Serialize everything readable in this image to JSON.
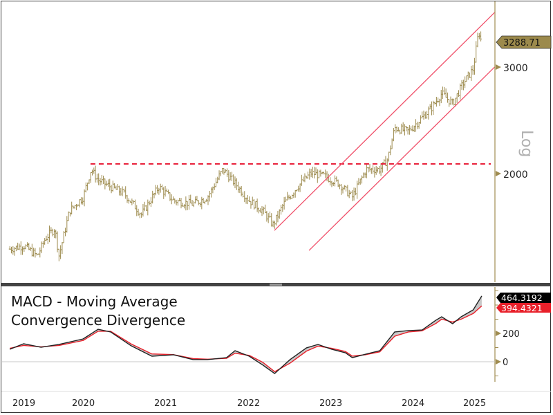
{
  "chart_data": [
    {
      "type": "ohlc",
      "scale": "log",
      "scale_label": "Log",
      "last_value_label": "3288.71",
      "y_ticks": [
        "2000",
        "3000"
      ],
      "x_ticks": [
        "2019",
        "2020",
        "2021",
        "2022",
        "2023",
        "2024",
        "2025"
      ],
      "bar_color": "#9c8a4c",
      "approx_closes": [
        [
          "2019-08-15",
          1501
        ],
        [
          "2019-10-15",
          1521
        ],
        [
          "2019-12-15",
          1462
        ],
        [
          "2020-01-20",
          1562
        ],
        [
          "2020-03-01",
          1624
        ],
        [
          "2020-03-20",
          1462
        ],
        [
          "2020-05-05",
          1735
        ],
        [
          "2020-07-05",
          1829
        ],
        [
          "2020-08-10",
          2032
        ],
        [
          "2020-09-10",
          1953
        ],
        [
          "2020-11-05",
          1902
        ],
        [
          "2021-01-05",
          1853
        ],
        [
          "2021-03-20",
          1712
        ],
        [
          "2021-06-05",
          1902
        ],
        [
          "2021-08-10",
          1805
        ],
        [
          "2021-11-05",
          1781
        ],
        [
          "2022-01-08",
          1829
        ],
        [
          "2022-03-15",
          2032
        ],
        [
          "2022-05-08",
          1928
        ],
        [
          "2022-07-10",
          1805
        ],
        [
          "2022-09-10",
          1735
        ],
        [
          "2022-10-25",
          1646
        ],
        [
          "2022-12-10",
          1781
        ],
        [
          "2023-02-10",
          1902
        ],
        [
          "2023-04-10",
          2005
        ],
        [
          "2023-06-10",
          1979
        ],
        [
          "2023-08-10",
          1928
        ],
        [
          "2023-10-10",
          1829
        ],
        [
          "2023-12-10",
          2032
        ],
        [
          "2024-02-10",
          2032
        ],
        [
          "2024-03-15",
          2114
        ],
        [
          "2024-04-15",
          2380
        ],
        [
          "2024-06-15",
          2349
        ],
        [
          "2024-08-15",
          2475
        ],
        [
          "2024-09-28",
          2575
        ],
        [
          "2024-11-10",
          2714
        ],
        [
          "2024-12-28",
          2609
        ],
        [
          "2025-02-15",
          2823
        ],
        [
          "2025-03-28",
          2976
        ],
        [
          "2025-04-22",
          3438
        ],
        [
          "2025-05-05",
          3289
        ]
      ],
      "annotations": {
        "resistance_level": 2075,
        "resistance_color": "#e8203a",
        "channel_color": "#f0506a",
        "channel_upper": [
          [
            "2022-10-30",
            1611
          ],
          [
            "2025-07-01",
            3692
          ]
        ],
        "channel_lower": [
          [
            "2023-04-01",
            1493
          ],
          [
            "2025-07-01",
            3000
          ]
        ]
      }
    },
    {
      "type": "line",
      "title_line1": "MACD - Moving Average",
      "title_line2": "Convergence Divergence",
      "y_ticks": [
        "0",
        "200"
      ],
      "dates": [
        "2019-08-15",
        "2019-10-15",
        "2020-01-01",
        "2020-03-20",
        "2020-07-05",
        "2020-09-10",
        "2020-11-05",
        "2021-02-05",
        "2021-05-05",
        "2021-08-10",
        "2021-11-05",
        "2022-01-08",
        "2022-04-01",
        "2022-05-08",
        "2022-07-10",
        "2022-09-10",
        "2022-11-01",
        "2023-01-08",
        "2023-03-20",
        "2023-05-10",
        "2023-07-10",
        "2023-09-10",
        "2023-10-10",
        "2023-12-10",
        "2024-02-10",
        "2024-04-15",
        "2024-06-15",
        "2024-08-15",
        "2024-10-15",
        "2024-11-10",
        "2024-12-28",
        "2025-02-05",
        "2025-03-28",
        "2025-05-05"
      ],
      "series": [
        {
          "color": "#222222",
          "last_label": "464.3192",
          "values": [
            88,
            127,
            102,
            122,
            161,
            229,
            210,
            112,
            39,
            49,
            15,
            15,
            29,
            78,
            39,
            -24,
            -83,
            15,
            98,
            122,
            88,
            63,
            29,
            54,
            78,
            210,
            220,
            224,
            293,
            317,
            268,
            317,
            366,
            464
          ]
        },
        {
          "color": "#e8202a",
          "last_label": "394.4321",
          "values": [
            95,
            115,
            105,
            115,
            150,
            215,
            215,
            125,
            55,
            50,
            22,
            18,
            24,
            60,
            45,
            -5,
            -70,
            -10,
            75,
            110,
            95,
            72,
            40,
            50,
            70,
            180,
            210,
            218,
            270,
            300,
            280,
            300,
            340,
            394
          ]
        }
      ],
      "fill_color": "#c8c8c8"
    }
  ]
}
